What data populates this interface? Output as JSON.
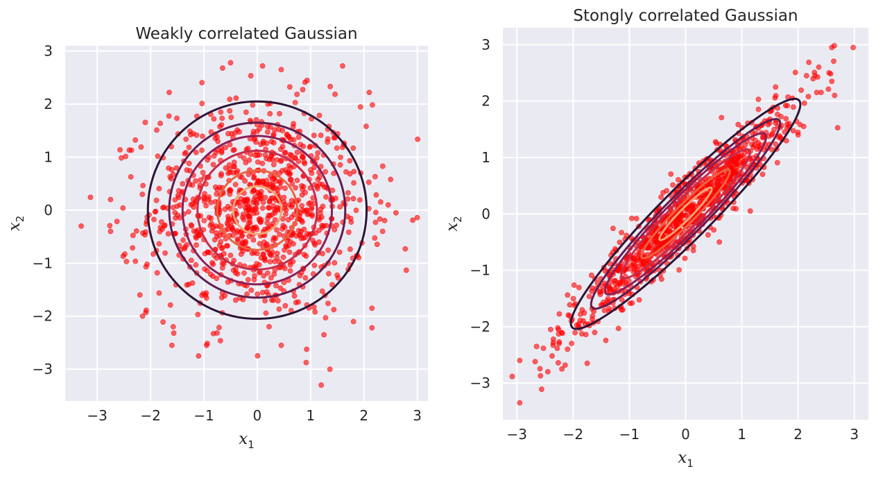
{
  "chart_data": [
    {
      "type": "scatter",
      "title": "Weakly correlated Gaussian",
      "xlabel": "x",
      "xlabel_sub": "1",
      "ylabel": "x",
      "ylabel_sub": "2",
      "xlim": [
        -3.6,
        3.2
      ],
      "ylim": [
        -3.6,
        3.1
      ],
      "xticks": [
        -3,
        -2,
        -1,
        0,
        1,
        2,
        3
      ],
      "xtick_labels": [
        "−3",
        "−2",
        "−1",
        "0",
        "1",
        "2",
        "3"
      ],
      "yticks": [
        -3,
        -2,
        -1,
        0,
        1,
        2,
        3
      ],
      "ytick_labels": [
        "−3",
        "−2",
        "−1",
        "0",
        "1",
        "2",
        "3"
      ],
      "grid": true,
      "point_color": "#ff0000",
      "point_count": 1000,
      "correlation": 0.0,
      "contours": {
        "type": "ellipse",
        "levels": [
          {
            "rx": 2.05,
            "ry": 2.05,
            "color": "#2d1436"
          },
          {
            "rx": 1.65,
            "ry": 1.65,
            "color": "#5f1c4f"
          },
          {
            "rx": 1.4,
            "ry": 1.4,
            "color": "#8b1f58"
          },
          {
            "rx": 1.12,
            "ry": 1.12,
            "color": "#c42d4e"
          },
          {
            "rx": 0.75,
            "ry": 0.75,
            "color": "#e8643f"
          },
          {
            "rx": 0.45,
            "ry": 0.45,
            "color": "#f3a56f"
          }
        ]
      },
      "points_outliers": [
        {
          "x": -3.3,
          "y": -0.3
        },
        {
          "x": -2.75,
          "y": 0.2
        },
        {
          "x": -2.75,
          "y": -0.4
        },
        {
          "x": 2.6,
          "y": -0.05
        },
        {
          "x": 2.5,
          "y": 0.58
        },
        {
          "x": 2.35,
          "y": -0.4
        },
        {
          "x": 1.2,
          "y": -3.3
        },
        {
          "x": -1.1,
          "y": -2.75
        },
        {
          "x": -0.5,
          "y": 2.78
        },
        {
          "x": 1.6,
          "y": 2.72
        },
        {
          "x": 2.1,
          "y": 2.22
        },
        {
          "x": -1.65,
          "y": 2.22
        },
        {
          "x": 2.15,
          "y": -2.22
        },
        {
          "x": 2.15,
          "y": -1.85
        },
        {
          "x": -2.15,
          "y": -2.0
        },
        {
          "x": -2.2,
          "y": -1.6
        },
        {
          "x": -1.6,
          "y": -2.55
        },
        {
          "x": -0.95,
          "y": -2.55
        },
        {
          "x": 0.45,
          "y": -2.55
        },
        {
          "x": 1.25,
          "y": -2.35
        },
        {
          "x": 0.1,
          "y": 2.72
        },
        {
          "x": 0.45,
          "y": 2.65
        },
        {
          "x": -0.65,
          "y": 2.68
        }
      ]
    },
    {
      "type": "scatter",
      "title": "Stongly correlated Gaussian",
      "xlabel": "x",
      "xlabel_sub": "1",
      "ylabel": "x",
      "ylabel_sub": "2",
      "xlim": [
        -3.25,
        3.25
      ],
      "ylim": [
        -3.65,
        3.3
      ],
      "xticks": [
        -3,
        -2,
        -1,
        0,
        1,
        2,
        3
      ],
      "xtick_labels": [
        "−3",
        "−2",
        "−1",
        "0",
        "1",
        "2",
        "3"
      ],
      "yticks": [
        -3,
        -2,
        -1,
        0,
        1,
        2,
        3
      ],
      "ytick_labels": [
        "−3",
        "−2",
        "−1",
        "0",
        "1",
        "2",
        "3"
      ],
      "grid": true,
      "point_color": "#ff0000",
      "point_count": 1000,
      "correlation": 0.95,
      "contours": {
        "type": "ellipse",
        "levels": [
          {
            "major": 2.85,
            "minor": 0.45,
            "color": "#2d1436"
          },
          {
            "major": 2.35,
            "minor": 0.36,
            "color": "#5f1c4f"
          },
          {
            "major": 2.0,
            "minor": 0.31,
            "color": "#8b1f58"
          },
          {
            "major": 1.6,
            "minor": 0.25,
            "color": "#c42d4e"
          },
          {
            "major": 1.1,
            "minor": 0.17,
            "color": "#e8643f"
          },
          {
            "major": 0.65,
            "minor": 0.1,
            "color": "#f3a56f"
          }
        ]
      },
      "points_outliers": [
        {
          "x": -2.95,
          "y": -3.35
        },
        {
          "x": -2.95,
          "y": -2.6
        },
        {
          "x": -2.65,
          "y": -2.35
        },
        {
          "x": -2.45,
          "y": -2.8
        },
        {
          "x": -2.4,
          "y": -2.05
        },
        {
          "x": -2.25,
          "y": -2.3
        },
        {
          "x": -2.2,
          "y": -2.75
        },
        {
          "x": -2.1,
          "y": -2.4
        },
        {
          "x": -1.75,
          "y": -2.65
        },
        {
          "x": -1.9,
          "y": -1.95
        },
        {
          "x": 2.98,
          "y": 2.95
        },
        {
          "x": 2.6,
          "y": 2.95
        },
        {
          "x": 2.65,
          "y": 2.1
        },
        {
          "x": 2.55,
          "y": 2.5
        },
        {
          "x": 2.6,
          "y": 2.35
        },
        {
          "x": 2.3,
          "y": 2.45
        },
        {
          "x": 2.15,
          "y": 2.45
        },
        {
          "x": 2.0,
          "y": 1.4
        },
        {
          "x": 1.9,
          "y": 2.05
        },
        {
          "x": 2.1,
          "y": 1.55
        },
        {
          "x": 1.15,
          "y": 0.05
        },
        {
          "x": 0.6,
          "y": -0.5
        },
        {
          "x": 1.6,
          "y": 2.25
        }
      ]
    }
  ]
}
